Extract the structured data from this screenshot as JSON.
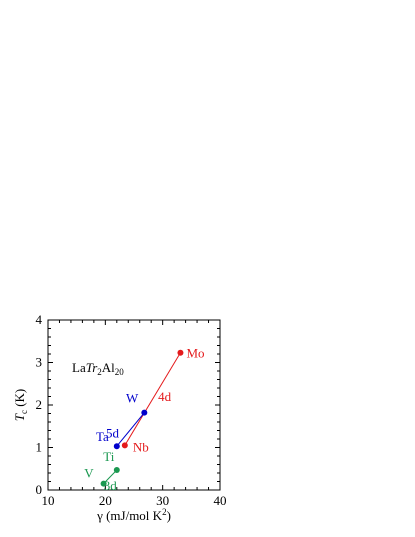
{
  "chart_data": {
    "type": "scatter",
    "annotation": {
      "parts": [
        {
          "text": "La",
          "style": "normal"
        },
        {
          "text": "Tr",
          "style": "italic"
        },
        {
          "text": "2",
          "style": "sub"
        },
        {
          "text": "Al",
          "style": "normal"
        },
        {
          "text": "20",
          "style": "sub"
        }
      ]
    },
    "xlabel": {
      "greek": "γ",
      "text": " (mJ/mol K",
      "sup": "2",
      "end": ")"
    },
    "ylabel": {
      "main": "T",
      "sub": "c",
      "rest": " (K)"
    },
    "xlim": [
      10,
      40
    ],
    "ylim": [
      0,
      4
    ],
    "xticks": [
      "10",
      "20",
      "30",
      "40"
    ],
    "yticks": [
      "0",
      "1",
      "2",
      "3",
      "4"
    ],
    "grid": false,
    "series": [
      {
        "name": "3d",
        "color": "#1a9850",
        "points": [
          {
            "label": "V",
            "x": 19.7,
            "y": 0.15
          },
          {
            "label": "Ti",
            "x": 22.0,
            "y": 0.47
          }
        ]
      },
      {
        "name": "4d",
        "color": "#e41a1c",
        "points": [
          {
            "label": "Nb",
            "x": 23.4,
            "y": 1.05
          },
          {
            "label": "Mo",
            "x": 33.1,
            "y": 3.23
          }
        ]
      },
      {
        "name": "5d",
        "color": "#0000cc",
        "points": [
          {
            "label": "Ta",
            "x": 22.0,
            "y": 1.03
          },
          {
            "label": "W",
            "x": 26.8,
            "y": 1.82
          }
        ]
      }
    ]
  }
}
